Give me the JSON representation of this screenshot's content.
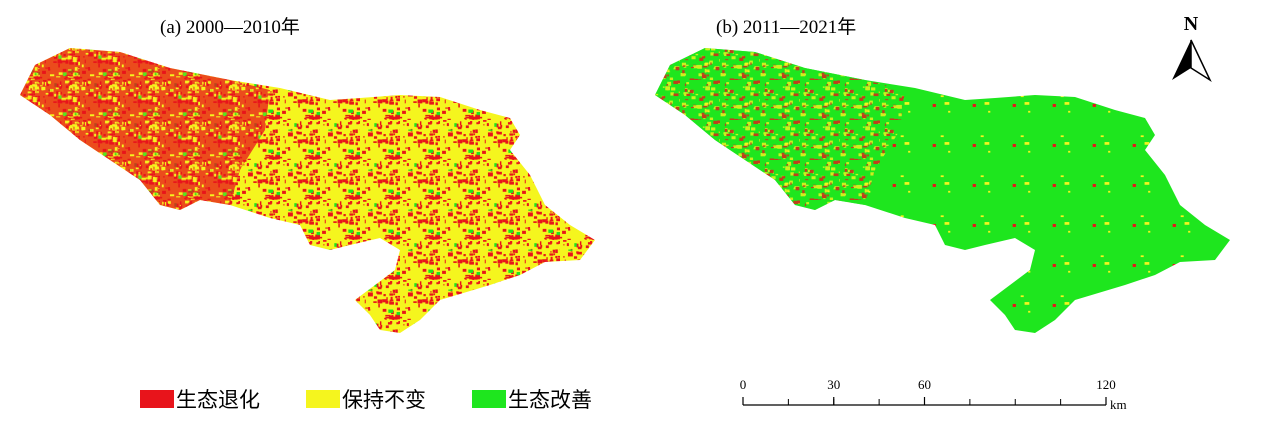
{
  "panels": [
    {
      "title": "(a)  2000—2010年"
    },
    {
      "title": "(b)  2011—2021年"
    }
  ],
  "legend": [
    {
      "label": "生态退化",
      "color": "#e8141b"
    },
    {
      "label": "保持不变",
      "color": "#f5f51e"
    },
    {
      "label": "生态改善",
      "color": "#1ee61e"
    }
  ],
  "north": "N",
  "scale_bar": {
    "ticks": [
      0,
      30,
      60,
      120
    ],
    "unit": "km"
  }
}
